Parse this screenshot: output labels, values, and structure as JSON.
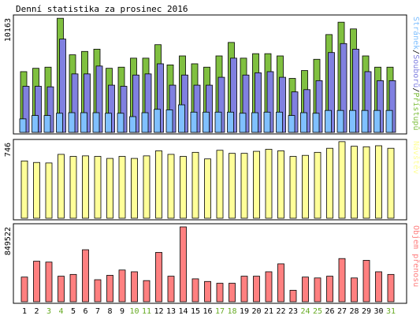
{
  "title": "Denní statistika za prosinec 2016",
  "colors": {
    "pristupy": "#80c040",
    "soubory": "#8080e0",
    "stranky": "#80c0ff",
    "navstevy": "#ffff99",
    "objem": "#ff8080",
    "weekend_label": "#66aa22",
    "weekday_label": "#000000"
  },
  "chart_data": [
    {
      "type": "bar",
      "panel": "top",
      "y_max_label": "10163",
      "legend_parts": [
        "Stránek",
        "/",
        "Souborů",
        "/",
        "Přístupů"
      ],
      "ylim": [
        0,
        10163
      ],
      "categories": [
        "1",
        "2",
        "3",
        "4",
        "5",
        "6",
        "7",
        "8",
        "9",
        "10",
        "11",
        "12",
        "13",
        "14",
        "15",
        "16",
        "17",
        "18",
        "19",
        "20",
        "21",
        "22",
        "23",
        "24",
        "25",
        "26",
        "27",
        "28",
        "29",
        "30",
        "31"
      ],
      "weekend": [
        "3",
        "4",
        "10",
        "11",
        "17",
        "18",
        "24",
        "25",
        "31"
      ],
      "series": [
        {
          "name": "Přístupů",
          "values": [
            5400,
            5700,
            5800,
            10150,
            6900,
            7200,
            7400,
            5700,
            5800,
            6600,
            6600,
            7800,
            6000,
            6800,
            6100,
            5800,
            6800,
            8000,
            6600,
            7000,
            7000,
            6800,
            4800,
            5500,
            6500,
            8700,
            9800,
            9200,
            6800,
            5800,
            5800
          ]
        },
        {
          "name": "Souborů",
          "values": [
            4100,
            4100,
            4050,
            8300,
            5200,
            5200,
            5900,
            4200,
            4100,
            5100,
            5200,
            6100,
            4200,
            5100,
            4200,
            4200,
            4900,
            6600,
            5100,
            5300,
            5400,
            4900,
            3600,
            3800,
            4600,
            7100,
            7900,
            7400,
            5400,
            4600,
            4600
          ]
        },
        {
          "name": "Stránek",
          "values": [
            1200,
            1500,
            1500,
            1700,
            1750,
            1750,
            1750,
            1700,
            1700,
            1400,
            1750,
            2050,
            2000,
            2450,
            1800,
            1800,
            1800,
            1800,
            1700,
            1750,
            1800,
            1800,
            1500,
            1750,
            1700,
            1950,
            1950,
            1950,
            1950,
            1950,
            1950
          ]
        }
      ]
    },
    {
      "type": "bar",
      "panel": "middle",
      "y_max_label": "746",
      "legend_parts": [
        "Návštěv"
      ],
      "ylim": [
        0,
        746
      ],
      "categories": [
        "1",
        "2",
        "3",
        "4",
        "5",
        "6",
        "7",
        "8",
        "9",
        "10",
        "11",
        "12",
        "13",
        "14",
        "15",
        "16",
        "17",
        "18",
        "19",
        "20",
        "21",
        "22",
        "23",
        "24",
        "25",
        "26",
        "27",
        "28",
        "29",
        "30",
        "31"
      ],
      "series": [
        {
          "name": "Návštěv",
          "values": [
            565,
            550,
            545,
            630,
            610,
            615,
            610,
            590,
            610,
            590,
            615,
            665,
            630,
            610,
            650,
            585,
            670,
            640,
            640,
            660,
            680,
            665,
            610,
            620,
            650,
            690,
            755,
            710,
            705,
            715,
            690
          ]
        }
      ]
    },
    {
      "type": "bar",
      "panel": "bottom",
      "y_max_label": "849522",
      "legend_parts": [
        "Objem přenosu"
      ],
      "ylim": [
        0,
        849522
      ],
      "categories": [
        "1",
        "2",
        "3",
        "4",
        "5",
        "6",
        "7",
        "8",
        "9",
        "10",
        "11",
        "12",
        "13",
        "14",
        "15",
        "16",
        "17",
        "18",
        "19",
        "20",
        "21",
        "22",
        "23",
        "24",
        "25",
        "26",
        "27",
        "28",
        "29",
        "30",
        "31"
      ],
      "series": [
        {
          "name": "Objem přenosu",
          "values": [
            280000,
            460000,
            450000,
            290000,
            310000,
            590000,
            250000,
            300000,
            360000,
            340000,
            240000,
            560000,
            290000,
            849522,
            260000,
            230000,
            210000,
            210000,
            290000,
            290000,
            340000,
            430000,
            130000,
            280000,
            270000,
            290000,
            490000,
            270000,
            470000,
            340000,
            310000
          ]
        }
      ]
    }
  ]
}
